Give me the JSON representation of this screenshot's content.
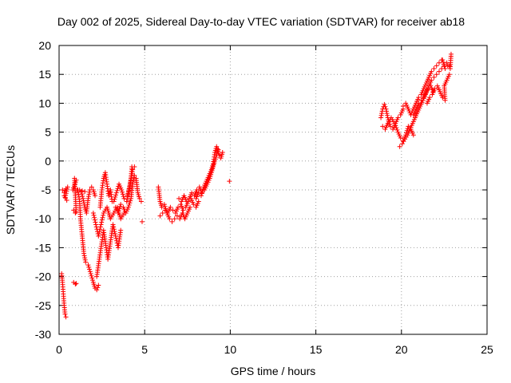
{
  "chart_data": {
    "type": "scatter",
    "title": "Day 002 of 2025, Sidereal Day-to-day VTEC variation (SDTVAR) for receiver ab18",
    "xlabel": "GPS time / hours",
    "ylabel": "SDTVAR / TECUs",
    "xlim": [
      0,
      25
    ],
    "ylim": [
      -30,
      20
    ],
    "xticks": [
      0,
      5,
      10,
      15,
      20,
      25
    ],
    "yticks": [
      -30,
      -25,
      -20,
      -15,
      -10,
      -5,
      0,
      5,
      10,
      15,
      20
    ],
    "grid": true,
    "marker": "+",
    "color": "#ff0000",
    "series": [
      {
        "segments": [
          [
            [
              0.15,
              -19.5
            ],
            [
              0.2,
              -21
            ],
            [
              0.25,
              -23
            ],
            [
              0.3,
              -25
            ],
            [
              0.35,
              -26.5
            ],
            [
              0.4,
              -27
            ]
          ],
          [
            [
              0.2,
              -5
            ],
            [
              0.3,
              -5.5
            ],
            [
              0.4,
              -4.8
            ],
            [
              0.5,
              -4.5
            ],
            [
              0.35,
              -6.3
            ],
            [
              0.45,
              -6.8
            ],
            [
              0.3,
              -6
            ]
          ],
          [
            [
              0.85,
              -21
            ],
            [
              0.95,
              -21.3
            ],
            [
              1.0,
              -21.2
            ]
          ],
          [
            [
              0.85,
              -8.5
            ],
            [
              0.95,
              -9
            ],
            [
              1.0,
              -8.8
            ],
            [
              0.9,
              -3
            ],
            [
              1.0,
              -3.3
            ],
            [
              0.8,
              -5
            ],
            [
              1.2,
              -5
            ],
            [
              1.5,
              -5.3
            ]
          ],
          [
            [
              1.1,
              -5
            ],
            [
              1.2,
              -7
            ],
            [
              1.25,
              -10
            ],
            [
              1.35,
              -13
            ],
            [
              1.45,
              -16
            ],
            [
              1.55,
              -17.5
            ],
            [
              1.7,
              -18
            ],
            [
              1.85,
              -19.5
            ],
            [
              2.0,
              -21
            ],
            [
              2.1,
              -22
            ],
            [
              2.2,
              -22.3
            ],
            [
              2.3,
              -21.5
            ]
          ],
          [
            [
              1.3,
              -5.3
            ],
            [
              1.4,
              -6.5
            ],
            [
              1.5,
              -8
            ],
            [
              1.6,
              -9
            ],
            [
              1.7,
              -6.5
            ],
            [
              1.8,
              -5
            ],
            [
              1.9,
              -4.5
            ],
            [
              2.0,
              -5
            ],
            [
              2.1,
              -6
            ]
          ],
          [
            [
              2.2,
              -20
            ],
            [
              2.35,
              -17
            ],
            [
              2.5,
              -14
            ],
            [
              2.6,
              -12
            ],
            [
              2.75,
              -15
            ],
            [
              2.85,
              -17
            ],
            [
              3.0,
              -14
            ],
            [
              3.15,
              -11
            ],
            [
              3.3,
              -13
            ],
            [
              3.45,
              -15
            ],
            [
              3.6,
              -12
            ]
          ],
          [
            [
              2.0,
              -9
            ],
            [
              2.15,
              -11
            ],
            [
              2.3,
              -13
            ],
            [
              2.45,
              -11
            ],
            [
              2.6,
              -9
            ],
            [
              2.8,
              -8
            ],
            [
              3.0,
              -10
            ],
            [
              3.2,
              -9
            ],
            [
              3.4,
              -8
            ],
            [
              3.6,
              -10
            ],
            [
              3.8,
              -9
            ]
          ],
          [
            [
              2.4,
              -8
            ],
            [
              2.5,
              -5
            ],
            [
              2.6,
              -3
            ],
            [
              2.7,
              -2
            ],
            [
              2.8,
              -4
            ],
            [
              2.9,
              -6
            ],
            [
              3.0,
              -5
            ],
            [
              3.1,
              -7
            ]
          ],
          [
            [
              3.2,
              -7
            ],
            [
              3.35,
              -5.5
            ],
            [
              3.5,
              -4
            ],
            [
              3.65,
              -5
            ],
            [
              3.8,
              -6.5
            ],
            [
              3.95,
              -7
            ],
            [
              4.1,
              -5
            ],
            [
              4.2,
              -3
            ],
            [
              4.25,
              -1
            ]
          ],
          [
            [
              3.3,
              -8
            ],
            [
              3.45,
              -9
            ],
            [
              3.6,
              -7.5
            ],
            [
              3.75,
              -8
            ],
            [
              3.9,
              -9
            ],
            [
              4.05,
              -8
            ],
            [
              4.2,
              -6.5
            ],
            [
              4.3,
              -4
            ],
            [
              4.4,
              -2.5
            ],
            [
              4.5,
              -3
            ],
            [
              4.6,
              -5.5
            ],
            [
              4.7,
              -6.5
            ],
            [
              4.8,
              -7
            ]
          ],
          [
            [
              4.0,
              -6
            ],
            [
              4.15,
              -4
            ],
            [
              4.3,
              -1.5
            ],
            [
              4.4,
              -1
            ]
          ],
          [
            [
              4.85,
              -10.5
            ]
          ],
          [
            [
              5.8,
              -4.5
            ],
            [
              5.9,
              -7
            ],
            [
              6.0,
              -8
            ],
            [
              6.15,
              -7.5
            ],
            [
              6.3,
              -9
            ],
            [
              6.45,
              -10
            ],
            [
              6.6,
              -10.5
            ],
            [
              6.75,
              -10
            ],
            [
              6.9,
              -9.5
            ],
            [
              7.05,
              -10
            ],
            [
              7.2,
              -9
            ],
            [
              7.35,
              -10
            ],
            [
              7.5,
              -9
            ],
            [
              7.65,
              -8
            ]
          ],
          [
            [
              5.9,
              -9.5
            ],
            [
              6.05,
              -9
            ],
            [
              6.2,
              -8.5
            ],
            [
              6.35,
              -9
            ],
            [
              6.5,
              -8
            ],
            [
              6.65,
              -8.5
            ],
            [
              6.8,
              -9
            ],
            [
              6.95,
              -8
            ],
            [
              7.1,
              -7.5
            ],
            [
              7.25,
              -8.5
            ],
            [
              7.4,
              -8
            ],
            [
              7.55,
              -7
            ],
            [
              7.7,
              -6.5
            ],
            [
              7.85,
              -7.5
            ],
            [
              8.0,
              -8
            ],
            [
              8.15,
              -7
            ]
          ],
          [
            [
              7.0,
              -6.5
            ],
            [
              7.15,
              -7
            ],
            [
              7.3,
              -6
            ],
            [
              7.45,
              -7
            ],
            [
              7.6,
              -6.5
            ],
            [
              7.75,
              -5.5
            ],
            [
              7.9,
              -6
            ],
            [
              8.05,
              -5
            ],
            [
              8.2,
              -4.5
            ],
            [
              8.35,
              -5.5
            ],
            [
              8.5,
              -5
            ],
            [
              8.65,
              -4
            ],
            [
              8.8,
              -3
            ],
            [
              8.9,
              -2
            ],
            [
              9.0,
              -1
            ],
            [
              9.1,
              0
            ],
            [
              9.2,
              1
            ],
            [
              9.3,
              2
            ]
          ],
          [
            [
              8.0,
              -6.5
            ],
            [
              8.15,
              -5.5
            ],
            [
              8.3,
              -6
            ],
            [
              8.45,
              -4.5
            ],
            [
              8.6,
              -3.5
            ],
            [
              8.75,
              -2.5
            ],
            [
              8.9,
              -1.5
            ],
            [
              9.0,
              -0.5
            ],
            [
              9.1,
              1.5
            ],
            [
              9.2,
              2.5
            ],
            [
              9.35,
              1
            ],
            [
              9.45,
              0.5
            ],
            [
              9.55,
              1.5
            ]
          ],
          [
            [
              9.95,
              -3.5
            ]
          ],
          [
            [
              18.8,
              7.5
            ],
            [
              18.9,
              9
            ],
            [
              19.0,
              9.8
            ],
            [
              19.1,
              9
            ],
            [
              19.2,
              7.5
            ],
            [
              19.35,
              6
            ],
            [
              19.5,
              5.5
            ],
            [
              19.65,
              6.5
            ],
            [
              19.8,
              7.5
            ],
            [
              19.95,
              8
            ],
            [
              20.1,
              9
            ]
          ],
          [
            [
              18.9,
              6
            ],
            [
              19.05,
              5.5
            ],
            [
              19.2,
              6.5
            ],
            [
              19.4,
              7.5
            ],
            [
              19.6,
              6.5
            ],
            [
              19.8,
              5
            ],
            [
              19.95,
              4
            ],
            [
              20.1,
              3.5
            ],
            [
              20.25,
              4.5
            ],
            [
              20.4,
              6
            ],
            [
              20.55,
              5.5
            ],
            [
              20.7,
              4.5
            ]
          ],
          [
            [
              19.9,
              2.5
            ],
            [
              20.05,
              3
            ],
            [
              20.2,
              3.8
            ],
            [
              20.35,
              4.5
            ],
            [
              20.5,
              5.5
            ],
            [
              20.65,
              6.5
            ],
            [
              20.8,
              7.5
            ],
            [
              20.95,
              8.5
            ],
            [
              21.1,
              9.5
            ],
            [
              21.25,
              10.5
            ],
            [
              21.4,
              11.5
            ],
            [
              21.55,
              12.5
            ],
            [
              21.7,
              13
            ],
            [
              21.85,
              12
            ]
          ],
          [
            [
              20.1,
              9.5
            ],
            [
              20.25,
              10
            ],
            [
              20.4,
              9
            ],
            [
              20.55,
              8
            ],
            [
              20.7,
              9
            ],
            [
              20.85,
              10
            ],
            [
              21.0,
              11
            ],
            [
              21.15,
              11.5
            ],
            [
              21.3,
              12.5
            ],
            [
              21.45,
              13.5
            ],
            [
              21.6,
              14.5
            ],
            [
              21.75,
              15.5
            ],
            [
              21.9,
              16
            ],
            [
              22.05,
              16.5
            ],
            [
              22.2,
              17
            ],
            [
              22.35,
              17.5
            ]
          ],
          [
            [
              20.7,
              8
            ],
            [
              20.85,
              9
            ],
            [
              21.0,
              10
            ],
            [
              21.15,
              10.5
            ],
            [
              21.3,
              11
            ],
            [
              21.45,
              12
            ],
            [
              21.6,
              13
            ],
            [
              21.75,
              14
            ],
            [
              21.9,
              14.5
            ],
            [
              22.05,
              15
            ],
            [
              22.2,
              15.5
            ],
            [
              22.35,
              16
            ],
            [
              22.5,
              16.5
            ],
            [
              22.65,
              17
            ],
            [
              22.8,
              16.5
            ]
          ],
          [
            [
              21.5,
              10
            ],
            [
              21.65,
              11
            ],
            [
              21.8,
              11.5
            ],
            [
              21.95,
              12.5
            ],
            [
              22.1,
              13
            ],
            [
              22.25,
              12
            ],
            [
              22.4,
              11
            ],
            [
              22.55,
              10.5
            ],
            [
              22.5,
              13
            ],
            [
              22.65,
              14
            ],
            [
              22.8,
              15
            ]
          ],
          [
            [
              22.4,
              17.5
            ],
            [
              22.55,
              16
            ],
            [
              22.7,
              16.5
            ],
            [
              22.85,
              16
            ],
            [
              22.9,
              18.5
            ]
          ]
        ]
      }
    ]
  }
}
